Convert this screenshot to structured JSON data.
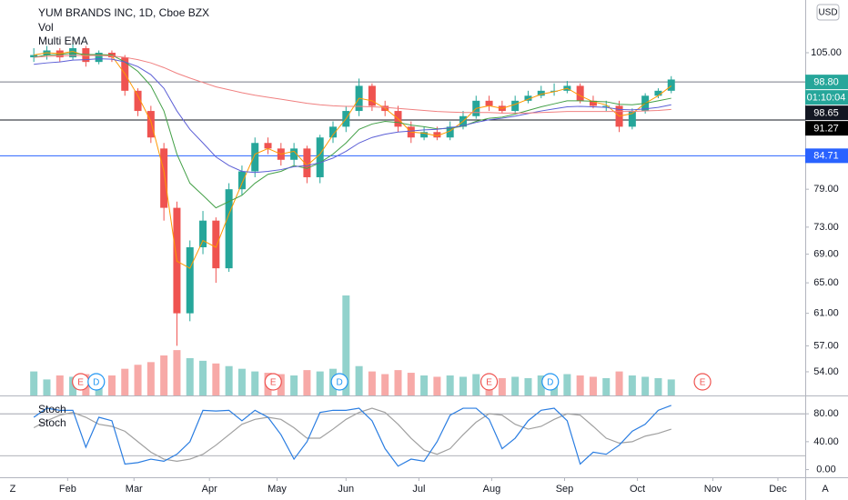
{
  "chart_data": [
    {
      "type": "candlestick",
      "title": "YUM BRANDS INC, 1D, Cboe BZX",
      "currency": "USD",
      "log": true,
      "ylim": [
        51.4,
        117.2
      ],
      "yticks": [
        {
          "value": 105,
          "label": "105.00"
        },
        {
          "value": 79,
          "label": "79.00"
        },
        {
          "value": 73,
          "label": "73.00"
        },
        {
          "value": 69,
          "label": "69.00"
        },
        {
          "value": 65,
          "label": "65.00"
        },
        {
          "value": 61,
          "label": "61.00"
        },
        {
          "value": 57,
          "label": "57.00"
        },
        {
          "value": 54,
          "label": "54.00"
        }
      ],
      "xlim": [
        -2.6,
        59.3
      ],
      "xticks": [
        {
          "value": 2.6,
          "label": "Feb"
        },
        {
          "value": 7.7,
          "label": "Mar"
        },
        {
          "value": 13.5,
          "label": "Apr"
        },
        {
          "value": 18.7,
          "label": "May"
        },
        {
          "value": 24,
          "label": "Jun"
        },
        {
          "value": 29.6,
          "label": "Jul"
        },
        {
          "value": 35.2,
          "label": "Aug"
        },
        {
          "value": 40.8,
          "label": "Sep"
        },
        {
          "value": 46.4,
          "label": "Oct"
        },
        {
          "value": 52.2,
          "label": "Nov"
        },
        {
          "value": 57.2,
          "label": "Dec"
        }
      ],
      "up_color": "#26a69a",
      "down_color": "#ef5350",
      "open": [
        104,
        104.5,
        105.5,
        104,
        106,
        103,
        105,
        104,
        97,
        93,
        86,
        76,
        61,
        70,
        74,
        67,
        79,
        82,
        87,
        86,
        84,
        86,
        81,
        88,
        90,
        93,
        98,
        94,
        93,
        90,
        88,
        89,
        88,
        90,
        92,
        95,
        94,
        93,
        95,
        96,
        97,
        97,
        98,
        95,
        94,
        94,
        90,
        93,
        96,
        97
      ],
      "high": [
        106,
        106.5,
        106,
        107,
        106.5,
        105.5,
        105.5,
        104.5,
        97.5,
        94,
        87,
        77,
        71,
        75.5,
        74.5,
        80,
        83,
        88,
        88,
        87,
        87,
        86.5,
        88.5,
        91,
        94,
        99.5,
        98.5,
        95,
        94,
        91,
        90,
        90,
        91,
        93,
        96,
        96,
        95,
        96,
        97,
        98,
        98.5,
        99,
        98.5,
        96,
        95,
        95,
        93.5,
        96.5,
        97.5,
        100
      ],
      "low": [
        103,
        103.5,
        103,
        103.5,
        102,
        102.5,
        103,
        96,
        92,
        87,
        74,
        57,
        60,
        69,
        65,
        66.5,
        78,
        81,
        85,
        83,
        83,
        80,
        80,
        87,
        89,
        92,
        93,
        92,
        89,
        87,
        87.5,
        87.5,
        87.5,
        89.5,
        91.5,
        93,
        92.5,
        92.5,
        94.5,
        95.5,
        96,
        96.5,
        94.5,
        93.5,
        93,
        89,
        89.5,
        92.5,
        95.5,
        96.5
      ],
      "close": [
        104.5,
        105.5,
        104,
        106,
        103,
        105,
        104,
        97,
        93,
        88,
        76,
        61,
        70,
        74,
        67,
        79,
        82,
        87,
        86,
        84,
        86,
        81,
        88,
        90,
        93,
        98,
        94,
        93,
        90,
        88,
        89,
        88,
        90,
        92,
        95,
        94,
        93,
        95,
        96,
        97,
        97,
        98,
        95,
        94,
        94,
        90,
        93,
        96,
        97,
        99.3
      ],
      "volume": {
        "name": "Vol",
        "values": [
          1.8,
          1.2,
          1.5,
          1.4,
          1.6,
          1.3,
          1.5,
          2.0,
          2.3,
          2.5,
          3.0,
          3.4,
          2.8,
          2.6,
          2.4,
          2.2,
          2.0,
          1.8,
          1.7,
          1.6,
          1.5,
          1.9,
          1.8,
          2.0,
          7.5,
          2.2,
          1.8,
          1.6,
          1.9,
          1.7,
          1.5,
          1.4,
          1.5,
          1.4,
          1.6,
          1.5,
          1.3,
          1.4,
          1.3,
          1.5,
          1.4,
          1.6,
          1.5,
          1.4,
          1.3,
          1.8,
          1.5,
          1.4,
          1.3,
          1.2
        ]
      },
      "overlay": {
        "name": "Multi EMA",
        "series": [
          {
            "color": "#ff9800",
            "values": [
              104.5,
              105,
              104.8,
              105.3,
              104.3,
              104.6,
              104.3,
              100.5,
              96,
              91,
              82,
              68,
              67,
              71,
              70,
              75,
              80,
              85,
              86,
              85,
              85.5,
              83,
              85,
              88.5,
              91.5,
              95.5,
              95,
              93.5,
              91.5,
              89,
              88.8,
              88.3,
              89.2,
              91,
              93.5,
              94,
              93.5,
              94.3,
              95.3,
              96.3,
              96.8,
              97.5,
              96,
              94.8,
              94.2,
              92,
              92.5,
              94.5,
              96,
              98
            ]
          },
          {
            "color": "#43a047",
            "values": [
              104,
              104.5,
              104.6,
              104.9,
              104.6,
              104.6,
              104.5,
              103,
              101,
              98,
              93,
              85,
              80,
              78,
              76,
              77,
              78,
              80,
              81.5,
              82,
              83,
              82.5,
              83.5,
              85,
              87,
              89.5,
              90.5,
              91,
              90.8,
              90.3,
              90,
              89.6,
              89.7,
              90.1,
              91,
              91.6,
              91.8,
              92.4,
              93.1,
              93.8,
              94.4,
              95,
              95,
              94.9,
              94.8,
              94.3,
              94.2,
              94.5,
              95,
              95.5
            ]
          },
          {
            "color": "#5c5fd6",
            "values": [
              102.5,
              102.8,
              103,
              103.4,
              103.5,
              103.7,
              103.6,
              103,
              102,
              100.3,
              97.5,
              93,
              89.5,
              87,
              84.5,
              83,
              82,
              81.8,
              82,
              82.3,
              82.8,
              83,
              83.5,
              84.3,
              85.5,
              87,
              88,
              88.6,
              89,
              89.2,
              89.4,
              89.5,
              89.8,
              90.2,
              90.8,
              91.3,
              91.6,
              92,
              92.5,
              93,
              93.4,
              93.8,
              93.9,
              93.8,
              93.7,
              93.3,
              93.2,
              93.4,
              93.7,
              94.2
            ]
          },
          {
            "color": "#f08080",
            "values": [
              104,
              104.2,
              104.3,
              104.4,
              104.4,
              104.4,
              104.3,
              104,
              103.5,
              102.8,
              101.8,
              100.6,
              99.6,
              98.7,
              97.8,
              97.2,
              96.6,
              96.1,
              95.7,
              95.3,
              94.9,
              94.5,
              94.2,
              94,
              93.9,
              93.9,
              93.8,
              93.7,
              93.5,
              93.3,
              93.1,
              92.9,
              92.8,
              92.7,
              92.7,
              92.7,
              92.6,
              92.6,
              92.6,
              92.7,
              92.8,
              92.9,
              92.9,
              92.9,
              92.9,
              92.9,
              92.9,
              93,
              93.1,
              93.3
            ]
          }
        ]
      },
      "price_labels": [
        {
          "value": 98.8,
          "label": "98.80",
          "bg": "#26a69a",
          "line": "#787b86"
        },
        {
          "value": 98.65,
          "label": "98.65",
          "bg": "#131722"
        },
        {
          "value": 91.27,
          "label": "91.27",
          "bg": "#000000",
          "line": "#131722"
        },
        {
          "value": 84.71,
          "label": "84.71",
          "bg": "#2962ff",
          "line": "#2962ff"
        }
      ],
      "countdown": "01:10:04",
      "events": [
        {
          "label": "E",
          "x": 3.6,
          "color": "#ef5350"
        },
        {
          "label": "D",
          "x": 4.8,
          "color": "#2196f3"
        },
        {
          "label": "E",
          "x": 18.4,
          "color": "#ef5350"
        },
        {
          "label": "D",
          "x": 23.5,
          "color": "#2196f3"
        },
        {
          "label": "E",
          "x": 35.0,
          "color": "#ef5350"
        },
        {
          "label": "D",
          "x": 39.7,
          "color": "#2196f3"
        },
        {
          "label": "E",
          "x": 51.4,
          "color": "#ef5350"
        }
      ]
    },
    {
      "type": "line",
      "ylim": [
        -11,
        105
      ],
      "yticks": [
        {
          "value": 80,
          "label": "80.00"
        },
        {
          "value": 40,
          "label": "40.00"
        },
        {
          "value": 0,
          "label": "0.00"
        }
      ],
      "bands": [
        80,
        20
      ],
      "series": [
        {
          "name": "Stoch",
          "color": "#2a7de1",
          "values": [
            75,
            88,
            85,
            85,
            32,
            75,
            70,
            8,
            10,
            15,
            12,
            22,
            40,
            85,
            84,
            85,
            70,
            85,
            75,
            50,
            15,
            40,
            82,
            85,
            85,
            88,
            70,
            30,
            5,
            15,
            12,
            40,
            78,
            88,
            88,
            72,
            30,
            45,
            70,
            85,
            88,
            70,
            8,
            25,
            22,
            35,
            55,
            65,
            85,
            92
          ]
        },
        {
          "name": "Stoch",
          "color": "#a0a0a0",
          "values": [
            60,
            70,
            78,
            82,
            75,
            65,
            62,
            55,
            40,
            25,
            15,
            12,
            15,
            22,
            35,
            50,
            65,
            72,
            75,
            72,
            60,
            45,
            45,
            58,
            72,
            82,
            88,
            82,
            65,
            45,
            28,
            22,
            30,
            50,
            68,
            80,
            78,
            65,
            58,
            62,
            72,
            80,
            78,
            62,
            45,
            38,
            40,
            48,
            52,
            58
          ]
        }
      ]
    }
  ],
  "toolbar": {
    "left": "Z",
    "right": "A"
  }
}
